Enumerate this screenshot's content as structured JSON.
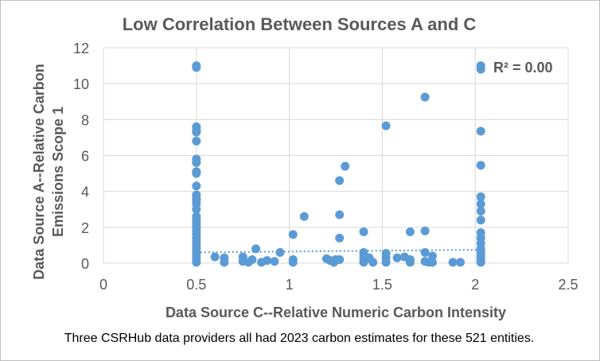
{
  "colors": {
    "marker": "#5b9bd5",
    "trendline": "#5b9bd5",
    "gridline": "#d9d9d9",
    "axis_text": "#595959",
    "caption_text": "#000000"
  },
  "caption": "Three CSRHub data providers all had 2023 carbon estimates for these 521 entities.",
  "chart_data": {
    "type": "scatter",
    "title": "Low Correlation Between Sources A and C",
    "xlabel": "Data Source C--Relative Numeric Carbon Intensity",
    "ylabel_lines": [
      "Data Source A--Relative Carbon",
      "Emissions Scope 1"
    ],
    "xlim": [
      0,
      2.5
    ],
    "ylim": [
      0,
      12
    ],
    "xticks": [
      0,
      0.5,
      1,
      1.5,
      2,
      2.5
    ],
    "xtick_labels": [
      "0",
      "0.5",
      "1",
      "1.5",
      "2",
      "2.5"
    ],
    "yticks": [
      0,
      2,
      4,
      6,
      8,
      10,
      12
    ],
    "ytick_labels": [
      "0",
      "2",
      "4",
      "6",
      "8",
      "10",
      "12"
    ],
    "grid": "vertical and horizontal major gridlines",
    "annotation": "R² = 0.00",
    "trendline": {
      "type": "linear",
      "x_range": [
        0.5,
        2.03
      ],
      "y_range": [
        0.6,
        0.75
      ]
    },
    "series": [
      {
        "points": [
          [
            0.5,
            11.0
          ],
          [
            0.5,
            10.9
          ],
          [
            0.5,
            7.6
          ],
          [
            0.5,
            7.4
          ],
          [
            0.5,
            7.3
          ],
          [
            0.5,
            6.8
          ],
          [
            0.5,
            5.8
          ],
          [
            0.5,
            5.6
          ],
          [
            0.5,
            5.1
          ],
          [
            0.5,
            5.0
          ],
          [
            0.5,
            4.3
          ],
          [
            0.5,
            3.8
          ],
          [
            0.5,
            3.6
          ],
          [
            0.5,
            3.5
          ],
          [
            0.5,
            3.3
          ],
          [
            0.5,
            3.0
          ],
          [
            0.5,
            2.6
          ],
          [
            0.5,
            2.4
          ],
          [
            0.5,
            2.2
          ],
          [
            0.5,
            2.0
          ],
          [
            0.5,
            1.8
          ],
          [
            0.5,
            1.6
          ],
          [
            0.5,
            1.4
          ],
          [
            0.5,
            1.2
          ],
          [
            0.5,
            1.0
          ],
          [
            0.5,
            0.8
          ],
          [
            0.5,
            0.6
          ],
          [
            0.5,
            0.4
          ],
          [
            0.5,
            0.2
          ],
          [
            0.5,
            0.05
          ],
          [
            0.6,
            0.35
          ],
          [
            0.65,
            0.3
          ],
          [
            0.65,
            0.05
          ],
          [
            0.75,
            0.35
          ],
          [
            0.75,
            0.1
          ],
          [
            0.78,
            0.05
          ],
          [
            0.8,
            0.2
          ],
          [
            0.82,
            0.8
          ],
          [
            0.85,
            0.05
          ],
          [
            0.88,
            0.15
          ],
          [
            0.92,
            0.1
          ],
          [
            0.95,
            0.6
          ],
          [
            1.02,
            1.6
          ],
          [
            1.02,
            0.2
          ],
          [
            1.02,
            0.05
          ],
          [
            1.08,
            2.6
          ],
          [
            1.2,
            0.25
          ],
          [
            1.22,
            0.15
          ],
          [
            1.24,
            0.05
          ],
          [
            1.25,
            0.2
          ],
          [
            1.27,
            4.6
          ],
          [
            1.27,
            2.7
          ],
          [
            1.27,
            1.4
          ],
          [
            1.27,
            0.2
          ],
          [
            1.3,
            5.4
          ],
          [
            1.4,
            1.75
          ],
          [
            1.4,
            0.6
          ],
          [
            1.4,
            0.4
          ],
          [
            1.4,
            0.2
          ],
          [
            1.4,
            0.05
          ],
          [
            1.43,
            0.3
          ],
          [
            1.45,
            0.05
          ],
          [
            1.52,
            7.65
          ],
          [
            1.52,
            0.55
          ],
          [
            1.52,
            0.3
          ],
          [
            1.52,
            0.05
          ],
          [
            1.58,
            0.3
          ],
          [
            1.62,
            0.35
          ],
          [
            1.65,
            1.75
          ],
          [
            1.65,
            0.2
          ],
          [
            1.65,
            0.05
          ],
          [
            1.73,
            9.25
          ],
          [
            1.73,
            1.8
          ],
          [
            1.73,
            0.6
          ],
          [
            1.73,
            0.1
          ],
          [
            1.75,
            0.05
          ],
          [
            1.77,
            0.4
          ],
          [
            1.77,
            0.05
          ],
          [
            1.88,
            0.05
          ],
          [
            1.92,
            0.05
          ],
          [
            2.03,
            11.0
          ],
          [
            2.03,
            10.8
          ],
          [
            2.03,
            7.35
          ],
          [
            2.03,
            5.45
          ],
          [
            2.03,
            3.7
          ],
          [
            2.03,
            3.3
          ],
          [
            2.03,
            2.9
          ],
          [
            2.03,
            2.4
          ],
          [
            2.03,
            1.7
          ],
          [
            2.03,
            1.4
          ],
          [
            2.03,
            1.1
          ],
          [
            2.03,
            0.8
          ],
          [
            2.03,
            0.6
          ],
          [
            2.03,
            0.4
          ],
          [
            2.03,
            0.2
          ],
          [
            2.03,
            0.05
          ]
        ]
      }
    ]
  }
}
